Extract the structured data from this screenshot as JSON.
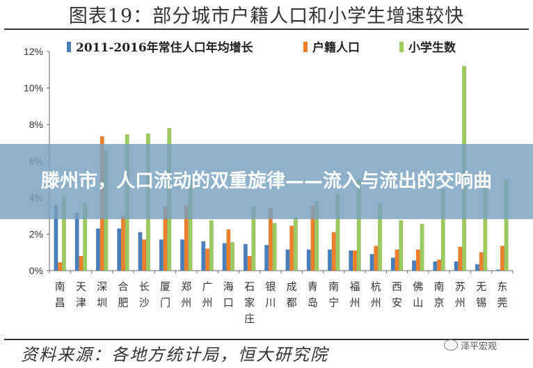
{
  "title": "图表19：部分城市户籍人口和小学生增速较快",
  "source": "资料来源：各地方统计局，恒大研究院",
  "overlay_text": "滕州市，人口流动的双重旋律——流入与流出的交响曲",
  "watermark": "泽平宏观",
  "colors": {
    "s1": "#4a7ebb",
    "s2": "#f07f2c",
    "s3": "#9bca5e",
    "banner": "#7aa3c0"
  },
  "chart_data": {
    "type": "bar",
    "categories": [
      "南昌",
      "天津",
      "深圳",
      "合肥",
      "长沙",
      "厦门",
      "郑州",
      "广州",
      "海口",
      "石家庄",
      "银川",
      "成都",
      "青岛",
      "南宁",
      "福州",
      "杭州",
      "西安",
      "佛山",
      "南京",
      "苏州",
      "无锡",
      "东莞"
    ],
    "series": [
      {
        "name": "2011-2016年常住人口年均增长",
        "values": [
          3.6,
          3.15,
          2.3,
          2.3,
          2.1,
          1.7,
          1.7,
          1.6,
          1.5,
          1.45,
          1.4,
          1.15,
          1.15,
          1.15,
          1.1,
          0.9,
          0.7,
          0.55,
          0.5,
          0.5,
          0.35,
          0.05
        ]
      },
      {
        "name": "户籍人口",
        "values": [
          0.45,
          0.8,
          7.35,
          3.0,
          1.7,
          3.5,
          3.55,
          1.2,
          2.25,
          0.8,
          3.4,
          2.45,
          3.55,
          2.1,
          1.1,
          1.35,
          1.15,
          1.15,
          0.6,
          1.3,
          1.0,
          1.35
        ]
      },
      {
        "name": "小学生数",
        "values": [
          4.1,
          3.7,
          6.6,
          7.45,
          7.5,
          7.8,
          5.0,
          2.75,
          1.55,
          3.5,
          2.6,
          2.9,
          3.8,
          4.2,
          5.0,
          3.7,
          2.75,
          2.55,
          4.45,
          11.2,
          4.5,
          4.95
        ]
      }
    ],
    "ylim": [
      0,
      12
    ],
    "yticks": [
      "0%",
      "2%",
      "4%",
      "6%",
      "8%",
      "10%",
      "12%"
    ],
    "grid": false,
    "legend_position": "top"
  }
}
